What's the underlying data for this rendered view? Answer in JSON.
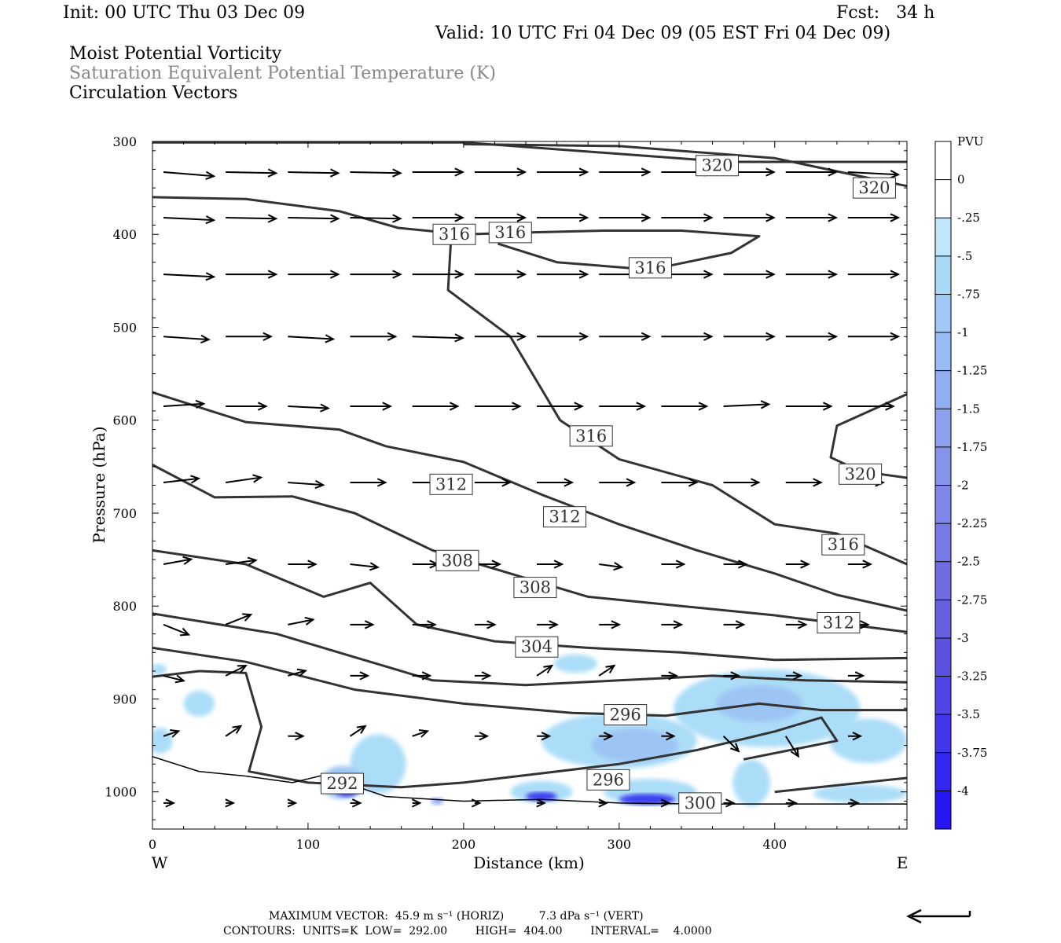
{
  "header": {
    "init": "Init: 00 UTC Thu 03 Dec 09",
    "fcst": "Fcst:   34 h",
    "valid": "Valid: 10 UTC Fri 04 Dec 09 (05 EST Fri 04 Dec 09)",
    "title_line1": "Moist Potential Vorticity",
    "title_line2": "Saturation Equivalent Potential Temperature (K)",
    "title_line3": "Circulation Vectors"
  },
  "footer": {
    "max_vector": "MAXIMUM VECTOR:  45.9 m s⁻¹ (HORIZ)          7.3 dPa s⁻¹ (VERT)",
    "contours": "CONTOURS:  UNITS=K  LOW=  292.00        HIGH=  404.00        INTERVAL=    4.0000"
  },
  "colors": {
    "contour": "#333333",
    "light_blue": "#a8dcf8",
    "mid_blue": "#8aa8f0",
    "deep_blue": "#3838f0"
  },
  "chart_data": {
    "type": "cross-section",
    "xlabel": "Distance (km)",
    "ylabel": "Pressure (hPa)",
    "x_ticks": [
      "0",
      "100",
      "200",
      "300",
      "400"
    ],
    "y_ticks": [
      "300",
      "400",
      "500",
      "600",
      "700",
      "800",
      "900",
      "1000"
    ],
    "xlim": [
      0,
      485
    ],
    "ylim": [
      300,
      1040
    ],
    "y_inverted": true,
    "west_label": "W",
    "east_label": "E",
    "colorbar": {
      "title": "PVU",
      "labels": [
        "0",
        "-.25",
        "-.5",
        "-.75",
        "-1",
        "-1.25",
        "-1.5",
        "-1.75",
        "-2",
        "-2.25",
        "-2.5",
        "-2.75",
        "-3",
        "-3.25",
        "-3.5",
        "-3.75",
        "-4"
      ],
      "colors": [
        "#ffffff",
        "#ffffff",
        "#bfe6fb",
        "#aad9f8",
        "#a0c9f6",
        "#99bbf3",
        "#93aef0",
        "#8ca1ed",
        "#8594ea",
        "#7e87e7",
        "#777ae5",
        "#706de2",
        "#6960e0",
        "#5d52df",
        "#4f44e4",
        "#4136ea",
        "#3328f0",
        "#2518f5"
      ]
    },
    "contour_labels": [
      {
        "text": "320",
        "x": 363,
        "p": 326
      },
      {
        "text": "320",
        "x": 464,
        "p": 350
      },
      {
        "text": "316",
        "x": 194,
        "p": 400
      },
      {
        "text": "316",
        "x": 230,
        "p": 398
      },
      {
        "text": "316",
        "x": 320,
        "p": 436
      },
      {
        "text": "316",
        "x": 282,
        "p": 617
      },
      {
        "text": "320",
        "x": 455,
        "p": 658
      },
      {
        "text": "312",
        "x": 192,
        "p": 669
      },
      {
        "text": "312",
        "x": 265,
        "p": 704
      },
      {
        "text": "316",
        "x": 444,
        "p": 734
      },
      {
        "text": "308",
        "x": 196,
        "p": 751
      },
      {
        "text": "308",
        "x": 246,
        "p": 780
      },
      {
        "text": "312",
        "x": 441,
        "p": 818
      },
      {
        "text": "304",
        "x": 247,
        "p": 844
      },
      {
        "text": "296",
        "x": 304,
        "p": 917
      },
      {
        "text": "296",
        "x": 293,
        "p": 987
      },
      {
        "text": "292",
        "x": 122,
        "p": 991
      },
      {
        "text": "300",
        "x": 352,
        "p": 1012
      }
    ],
    "contours": [
      {
        "value": "320",
        "points": [
          [
            0,
            301
          ],
          [
            200,
            301
          ],
          [
            370,
            322
          ],
          [
            485,
            322
          ]
        ]
      },
      {
        "value": "320",
        "points": [
          [
            200,
            303
          ],
          [
            300,
            305
          ],
          [
            400,
            318
          ],
          [
            485,
            348
          ]
        ]
      },
      {
        "value": "316",
        "points": [
          [
            0,
            360
          ],
          [
            60,
            362
          ],
          [
            120,
            375
          ],
          [
            158,
            393
          ],
          [
            200,
            400
          ],
          [
            240,
            398
          ],
          [
            290,
            396
          ],
          [
            340,
            396
          ],
          [
            390,
            402
          ],
          [
            372,
            420
          ],
          [
            320,
            438
          ],
          [
            260,
            430
          ],
          [
            222,
            410
          ]
        ]
      },
      {
        "value": "316",
        "points": [
          [
            192,
            403
          ],
          [
            190,
            460
          ],
          [
            230,
            510
          ],
          [
            262,
            600
          ],
          [
            300,
            642
          ],
          [
            360,
            670
          ],
          [
            400,
            712
          ],
          [
            440,
            722
          ],
          [
            485,
            755
          ]
        ]
      },
      {
        "value": "320",
        "points": [
          [
            485,
            572
          ],
          [
            440,
            606
          ],
          [
            436,
            640
          ],
          [
            455,
            655
          ],
          [
            485,
            662
          ]
        ]
      },
      {
        "value": "312",
        "points": [
          [
            0,
            570
          ],
          [
            60,
            602
          ],
          [
            120,
            610
          ],
          [
            150,
            628
          ],
          [
            200,
            645
          ],
          [
            250,
            680
          ],
          [
            300,
            712
          ],
          [
            350,
            740
          ],
          [
            400,
            765
          ],
          [
            440,
            788
          ],
          [
            485,
            805
          ]
        ]
      },
      {
        "value": "308",
        "points": [
          [
            0,
            648
          ],
          [
            40,
            683
          ],
          [
            90,
            682
          ],
          [
            130,
            700
          ],
          [
            180,
            740
          ],
          [
            220,
            760
          ],
          [
            280,
            790
          ],
          [
            340,
            800
          ],
          [
            400,
            810
          ],
          [
            485,
            828
          ]
        ]
      },
      {
        "value": "304",
        "points": [
          [
            0,
            740
          ],
          [
            60,
            755
          ],
          [
            110,
            790
          ],
          [
            140,
            775
          ],
          [
            170,
            820
          ],
          [
            220,
            838
          ],
          [
            280,
            845
          ],
          [
            340,
            850
          ],
          [
            400,
            858
          ],
          [
            485,
            856
          ]
        ]
      },
      {
        "value": "300",
        "points": [
          [
            0,
            808
          ],
          [
            80,
            830
          ],
          [
            130,
            855
          ],
          [
            180,
            880
          ],
          [
            240,
            885
          ],
          [
            300,
            880
          ],
          [
            360,
            875
          ],
          [
            420,
            880
          ],
          [
            485,
            882
          ]
        ]
      },
      {
        "value": "300",
        "points": [
          [
            0,
            845
          ],
          [
            60,
            860
          ],
          [
            130,
            890
          ],
          [
            200,
            905
          ],
          [
            270,
            915
          ],
          [
            330,
            918
          ],
          [
            390,
            905
          ],
          [
            430,
            912
          ],
          [
            485,
            912
          ]
        ]
      },
      {
        "value": "296",
        "points": [
          [
            0,
            876
          ],
          [
            30,
            870
          ],
          [
            60,
            872
          ],
          [
            70,
            930
          ],
          [
            62,
            978
          ],
          [
            100,
            990
          ],
          [
            160,
            995
          ],
          [
            200,
            990
          ],
          [
            250,
            980
          ],
          [
            300,
            970
          ],
          [
            350,
            955
          ],
          [
            400,
            935
          ],
          [
            430,
            920
          ],
          [
            440,
            945
          ],
          [
            410,
            955
          ],
          [
            380,
            965
          ]
        ]
      },
      {
        "value": "296",
        "points": [
          [
            400,
            1000
          ],
          [
            485,
            985
          ]
        ]
      }
    ],
    "surface": [
      [
        0,
        962
      ],
      [
        30,
        978
      ],
      [
        60,
        983
      ],
      [
        90,
        990
      ],
      [
        110,
        982
      ],
      [
        150,
        1005
      ],
      [
        200,
        1010
      ],
      [
        250,
        1008
      ],
      [
        300,
        1012
      ],
      [
        350,
        1013
      ],
      [
        400,
        1013
      ],
      [
        485,
        1013
      ]
    ],
    "vectors": [
      {
        "p": 333,
        "xs": [
          0,
          40,
          80,
          120,
          160,
          200,
          240,
          280,
          320,
          360,
          400,
          440
        ],
        "u": [
          1,
          1,
          1,
          1,
          1,
          1,
          1,
          1,
          1,
          1,
          1,
          1
        ],
        "w": [
          0.08,
          0.02,
          0.02,
          0.02,
          0,
          0,
          0,
          0,
          0,
          0,
          0,
          0.05
        ]
      },
      {
        "p": 382,
        "xs": [
          0,
          40,
          80,
          120,
          160,
          200,
          240,
          280,
          320,
          360,
          400,
          440
        ],
        "u": [
          1,
          1,
          1,
          1,
          1,
          1,
          1,
          1,
          1,
          1,
          1,
          1
        ],
        "w": [
          0.05,
          0.02,
          0.02,
          0.02,
          0,
          0,
          0,
          0,
          0,
          0,
          0,
          0
        ]
      },
      {
        "p": 443,
        "xs": [
          0,
          40,
          80,
          120,
          160,
          200,
          240,
          280,
          320,
          360,
          400,
          440
        ],
        "u": [
          1,
          1,
          1,
          1,
          1,
          1,
          1,
          1,
          1,
          1,
          1,
          1
        ],
        "w": [
          0.05,
          0,
          0,
          0,
          0,
          0,
          0,
          0,
          0,
          0,
          0,
          0
        ]
      },
      {
        "p": 510,
        "xs": [
          0,
          40,
          80,
          120,
          160,
          200,
          240,
          280,
          320,
          360,
          400,
          440
        ],
        "u": [
          0.9,
          0.9,
          0.9,
          0.9,
          1,
          1,
          1,
          1,
          1,
          1,
          1,
          1
        ],
        "w": [
          0.06,
          0,
          0.05,
          0,
          0.03,
          0,
          0,
          0,
          0,
          0,
          0,
          0
        ]
      },
      {
        "p": 585,
        "xs": [
          0,
          40,
          80,
          120,
          160,
          200,
          240,
          280,
          320,
          360,
          400,
          440
        ],
        "u": [
          0.8,
          0.8,
          0.8,
          0.8,
          0.9,
          0.9,
          0.9,
          0.9,
          0.9,
          0.9,
          0.9,
          0.9
        ],
        "w": [
          -0.05,
          0,
          0.04,
          0,
          0,
          0,
          0,
          0,
          0,
          -0.04,
          0,
          0
        ]
      },
      {
        "p": 667,
        "xs": [
          0,
          40,
          80,
          120,
          160,
          200,
          240,
          280,
          320,
          360,
          400,
          440
        ],
        "u": [
          0.7,
          0.7,
          0.7,
          0.7,
          0.7,
          0.7,
          0.7,
          0.7,
          0.7,
          0.7,
          0.7,
          0.7
        ],
        "w": [
          -0.08,
          -0.1,
          0.05,
          0,
          0,
          0,
          0,
          0,
          0,
          0,
          0,
          0
        ]
      },
      {
        "p": 755,
        "xs": [
          0,
          40,
          80,
          120,
          160,
          200,
          240,
          280,
          320,
          360,
          400,
          440
        ],
        "u": [
          0.55,
          0.6,
          0.55,
          0.55,
          0.5,
          0.5,
          0.5,
          0.45,
          0.45,
          0.45,
          0.45,
          0.45
        ],
        "w": [
          -0.1,
          -0.08,
          0,
          0.06,
          0,
          0,
          0,
          0.06,
          0,
          0,
          0,
          0
        ]
      },
      {
        "p": 820,
        "xs": [
          0,
          40,
          80,
          120,
          160,
          200,
          240,
          280,
          320,
          360,
          400,
          440
        ],
        "u": [
          0.5,
          0.5,
          0.5,
          0.45,
          0.45,
          0.4,
          0.4,
          0.4,
          0.4,
          0.4,
          0.4,
          0.4
        ],
        "w": [
          0.2,
          -0.2,
          -0.1,
          0,
          0,
          0,
          0,
          0,
          0,
          0,
          0,
          0
        ]
      },
      {
        "p": 875,
        "xs": [
          0,
          40,
          80,
          120,
          160,
          200,
          240,
          280,
          320,
          360,
          400,
          440
        ],
        "u": [
          0.4,
          0.4,
          0.35,
          0.35,
          0.35,
          0.3,
          0.3,
          0.3,
          0.3,
          0.3,
          0.3,
          0.3
        ],
        "w": [
          0.1,
          -0.2,
          -0.1,
          0,
          0,
          0,
          -0.2,
          -0.2,
          0,
          0,
          0,
          0
        ]
      },
      {
        "p": 940,
        "xs": [
          0,
          40,
          80,
          120,
          160,
          200,
          240,
          280,
          320,
          360,
          400,
          440
        ],
        "u": [
          0.3,
          0.3,
          0.3,
          0.3,
          0.3,
          0.25,
          0.25,
          0.25,
          0.25,
          0.3,
          0.25,
          0.25
        ],
        "w": [
          -0.1,
          -0.2,
          0,
          -0.2,
          -0.1,
          0,
          0,
          0,
          0,
          0.3,
          0.4,
          0
        ]
      },
      {
        "p": 1012,
        "xs": [
          0,
          40,
          80,
          120,
          160,
          200,
          240,
          280,
          320,
          360,
          400,
          440
        ],
        "u": [
          0.2,
          0.15,
          0.15,
          0.2,
          0.15,
          0.1,
          0.15,
          0.15,
          0.15,
          0.2,
          0.2,
          0.2
        ],
        "w": [
          0,
          0,
          0,
          0,
          0,
          0,
          0,
          0,
          0,
          0,
          0,
          0
        ]
      }
    ],
    "pv_patches": [
      {
        "shade": 1,
        "x": 4,
        "p": 868,
        "rx": 5,
        "rp": 6
      },
      {
        "shade": 1,
        "x": 30,
        "p": 905,
        "rx": 10,
        "rp": 14
      },
      {
        "shade": 1,
        "x": 5,
        "p": 945,
        "rx": 8,
        "rp": 14
      },
      {
        "shade": 1,
        "x": 145,
        "p": 970,
        "rx": 18,
        "rp": 32
      },
      {
        "shade": 2,
        "x": 122,
        "p": 990,
        "rx": 14,
        "rp": 18
      },
      {
        "shade": 4,
        "x": 125,
        "p": 996,
        "rx": 8,
        "rp": 9
      },
      {
        "shade": 1,
        "x": 272,
        "p": 862,
        "rx": 14,
        "rp": 10
      },
      {
        "shade": 1,
        "x": 300,
        "p": 945,
        "rx": 50,
        "rp": 30
      },
      {
        "shade": 2,
        "x": 310,
        "p": 950,
        "rx": 28,
        "rp": 18
      },
      {
        "shade": 1,
        "x": 395,
        "p": 910,
        "rx": 60,
        "rp": 42
      },
      {
        "shade": 2,
        "x": 390,
        "p": 905,
        "rx": 28,
        "rp": 20
      },
      {
        "shade": 1,
        "x": 460,
        "p": 945,
        "rx": 25,
        "rp": 24
      },
      {
        "shade": 1,
        "x": 385,
        "p": 990,
        "rx": 12,
        "rp": 25
      },
      {
        "shade": 1,
        "x": 320,
        "p": 1000,
        "rx": 30,
        "rp": 14
      },
      {
        "shade": 4,
        "x": 318,
        "p": 1008,
        "rx": 18,
        "rp": 6
      },
      {
        "shade": 1,
        "x": 250,
        "p": 1000,
        "rx": 20,
        "rp": 12
      },
      {
        "shade": 4,
        "x": 250,
        "p": 1005,
        "rx": 10,
        "rp": 5
      },
      {
        "shade": 1,
        "x": 455,
        "p": 1002,
        "rx": 30,
        "rp": 10
      },
      {
        "shade": 3,
        "x": 183,
        "p": 1010,
        "rx": 4,
        "rp": 4
      }
    ]
  }
}
